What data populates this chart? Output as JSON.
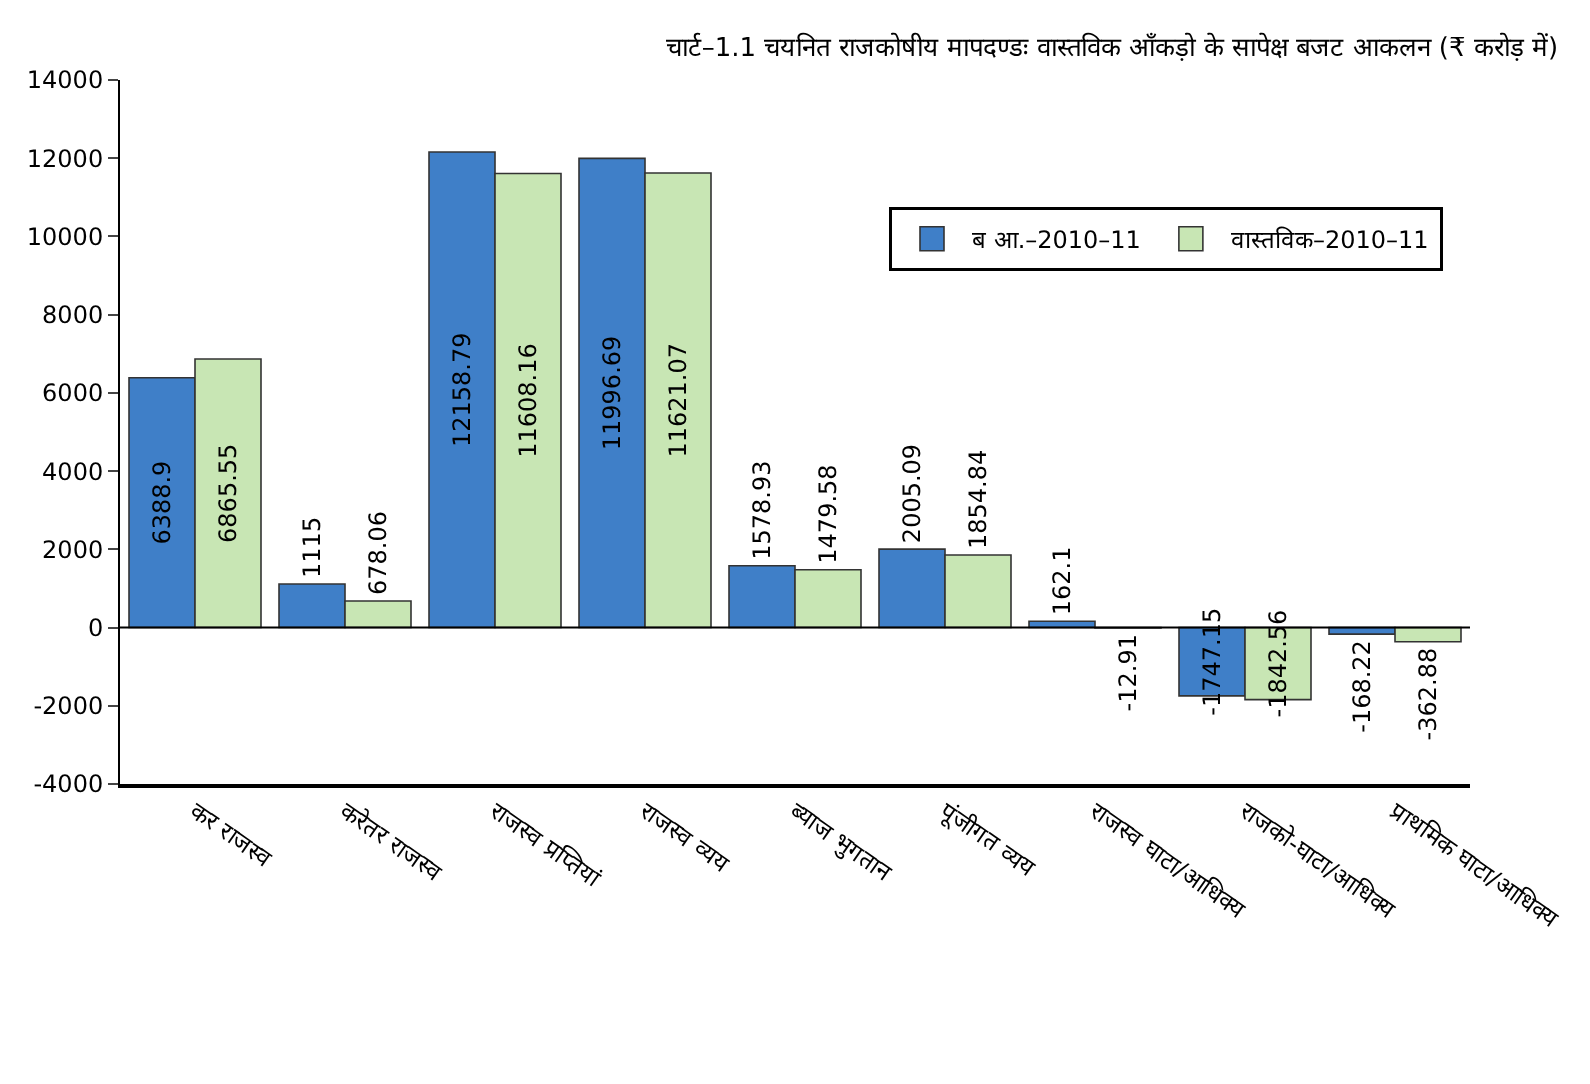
{
  "chart_data": {
    "type": "bar",
    "title": "चार्ट–1.1 चयनित राजकोषीय मापदण्डः वास्तविक आँकड़ो के सापेक्ष बजट आकलन (₹ करोड़ में)",
    "categories": [
      "कर राजस्व",
      "करेतर राजस्व",
      "राजस्व प्रप्तियां",
      "राजस्व व्यय",
      "ब्याज भुगतान",
      "पूंजीगत व्यय",
      "राजस्व घाटा/आधिक्य",
      "राजको-घाटा/आधिक्य",
      "प्राथमिक घाटा/आधिक्य"
    ],
    "series": [
      {
        "name": "ब आ.–2010–11",
        "color": "#3f7fc8",
        "values": [
          6388.9,
          1115,
          12158.79,
          11996.69,
          1578.93,
          2005.09,
          162.1,
          -1747.15,
          -168.22
        ]
      },
      {
        "name": "वास्तविक–2010–11",
        "color": "#c8e6b4",
        "values": [
          6865.55,
          678.06,
          11608.16,
          11621.07,
          1479.58,
          1854.84,
          -12.91,
          -1842.56,
          -362.88
        ]
      }
    ],
    "ylim": [
      -4000,
      14000
    ],
    "yticks": [
      -4000,
      -2000,
      0,
      2000,
      4000,
      6000,
      8000,
      10000,
      12000,
      14000
    ],
    "legend": "top right",
    "data_labels": true
  }
}
